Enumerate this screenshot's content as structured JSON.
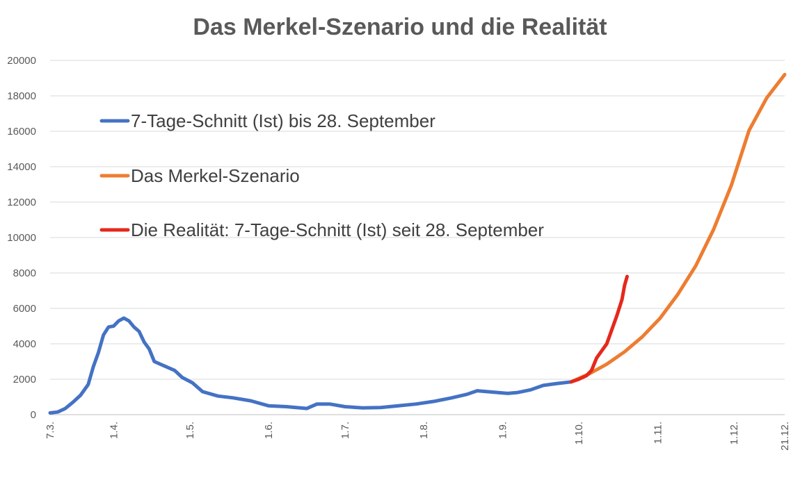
{
  "chart_data": {
    "type": "line",
    "title": "Das Merkel-Szenario und die Realität",
    "xlabel": "",
    "ylabel": "",
    "ylim": [
      0,
      20000
    ],
    "yticks": [
      0,
      2000,
      4000,
      6000,
      8000,
      10000,
      12000,
      14000,
      16000,
      18000,
      20000
    ],
    "xlim": [
      "2020-03-07",
      "2020-12-21"
    ],
    "xticks": [
      {
        "date": "2020-03-07",
        "label": "7.3."
      },
      {
        "date": "2020-04-01",
        "label": "1.4."
      },
      {
        "date": "2020-05-01",
        "label": "1.5."
      },
      {
        "date": "2020-06-01",
        "label": "1.6."
      },
      {
        "date": "2020-07-01",
        "label": "1.7."
      },
      {
        "date": "2020-08-01",
        "label": "1.8."
      },
      {
        "date": "2020-09-01",
        "label": "1.9."
      },
      {
        "date": "2020-10-01",
        "label": "1.10."
      },
      {
        "date": "2020-11-01",
        "label": "1.11."
      },
      {
        "date": "2020-12-01",
        "label": "1.12."
      },
      {
        "date": "2020-12-21",
        "label": "21.12."
      }
    ],
    "grid": true,
    "legend_position": "upper-left",
    "series": [
      {
        "name": "7-Tage-Schnitt (Ist) bis 28. September",
        "color": "#4472C4",
        "points": [
          [
            "2020-03-07",
            100
          ],
          [
            "2020-03-10",
            150
          ],
          [
            "2020-03-13",
            350
          ],
          [
            "2020-03-16",
            700
          ],
          [
            "2020-03-19",
            1100
          ],
          [
            "2020-03-22",
            1700
          ],
          [
            "2020-03-24",
            2700
          ],
          [
            "2020-03-26",
            3500
          ],
          [
            "2020-03-28",
            4500
          ],
          [
            "2020-03-30",
            4950
          ],
          [
            "2020-04-01",
            5000
          ],
          [
            "2020-04-03",
            5300
          ],
          [
            "2020-04-05",
            5450
          ],
          [
            "2020-04-07",
            5300
          ],
          [
            "2020-04-09",
            4950
          ],
          [
            "2020-04-11",
            4700
          ],
          [
            "2020-04-13",
            4100
          ],
          [
            "2020-04-15",
            3700
          ],
          [
            "2020-04-17",
            3000
          ],
          [
            "2020-04-21",
            2750
          ],
          [
            "2020-04-25",
            2500
          ],
          [
            "2020-04-28",
            2100
          ],
          [
            "2020-05-02",
            1800
          ],
          [
            "2020-05-06",
            1300
          ],
          [
            "2020-05-12",
            1050
          ],
          [
            "2020-05-18",
            950
          ],
          [
            "2020-05-25",
            780
          ],
          [
            "2020-06-01",
            500
          ],
          [
            "2020-06-08",
            450
          ],
          [
            "2020-06-16",
            350
          ],
          [
            "2020-06-20",
            600
          ],
          [
            "2020-06-25",
            600
          ],
          [
            "2020-07-01",
            450
          ],
          [
            "2020-07-08",
            380
          ],
          [
            "2020-07-15",
            400
          ],
          [
            "2020-07-22",
            500
          ],
          [
            "2020-07-29",
            600
          ],
          [
            "2020-08-05",
            750
          ],
          [
            "2020-08-12",
            950
          ],
          [
            "2020-08-18",
            1150
          ],
          [
            "2020-08-22",
            1350
          ],
          [
            "2020-08-26",
            1300
          ],
          [
            "2020-08-30",
            1250
          ],
          [
            "2020-09-03",
            1200
          ],
          [
            "2020-09-07",
            1250
          ],
          [
            "2020-09-12",
            1400
          ],
          [
            "2020-09-17",
            1650
          ],
          [
            "2020-09-22",
            1750
          ],
          [
            "2020-09-28",
            1850
          ]
        ]
      },
      {
        "name": "Das Merkel-Szenario",
        "color": "#ED7D31",
        "points": [
          [
            "2020-09-28",
            1850
          ],
          [
            "2020-10-05",
            2300
          ],
          [
            "2020-10-12",
            2850
          ],
          [
            "2020-10-19",
            3550
          ],
          [
            "2020-10-26",
            4400
          ],
          [
            "2020-11-02",
            5450
          ],
          [
            "2020-11-09",
            6800
          ],
          [
            "2020-11-16",
            8400
          ],
          [
            "2020-11-23",
            10450
          ],
          [
            "2020-11-30",
            12950
          ],
          [
            "2020-12-07",
            16050
          ],
          [
            "2020-12-14",
            17900
          ],
          [
            "2020-12-21",
            19200
          ]
        ]
      },
      {
        "name": "Die Realität: 7-Tage-Schnitt (Ist) seit 28. September",
        "color": "#E5281C",
        "points": [
          [
            "2020-09-28",
            1850
          ],
          [
            "2020-10-01",
            2000
          ],
          [
            "2020-10-04",
            2200
          ],
          [
            "2020-10-06",
            2500
          ],
          [
            "2020-10-08",
            3200
          ],
          [
            "2020-10-10",
            3600
          ],
          [
            "2020-10-12",
            4000
          ],
          [
            "2020-10-14",
            4800
          ],
          [
            "2020-10-16",
            5600
          ],
          [
            "2020-10-18",
            6500
          ],
          [
            "2020-10-19",
            7300
          ],
          [
            "2020-10-20",
            7800
          ]
        ]
      }
    ]
  }
}
